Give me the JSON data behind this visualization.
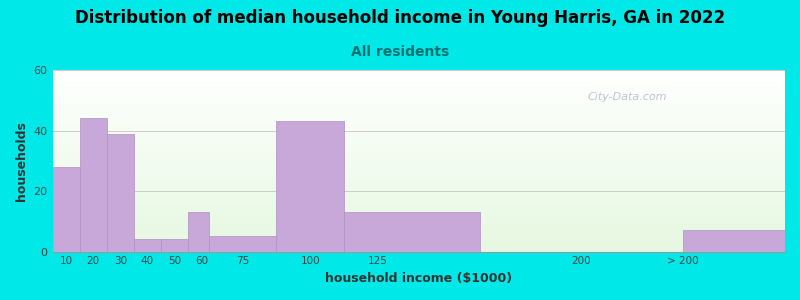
{
  "title": "Distribution of median household income in Young Harris, GA in 2022",
  "subtitle": "All residents",
  "xlabel": "household income ($1000)",
  "ylabel": "households",
  "title_fontsize": 12,
  "subtitle_fontsize": 10,
  "subtitle_color": "#007070",
  "bar_color": "#c8a8d8",
  "bar_edge_color": "#b090c0",
  "background_color": "#00e8e8",
  "plot_bg_top": "#eaf5e8",
  "plot_bg_bottom": "#d4eccc",
  "ylim": [
    0,
    60
  ],
  "yticks": [
    0,
    20,
    40,
    60
  ],
  "watermark": "City-Data.com",
  "bracket_lefts": [
    5,
    15,
    25,
    35,
    45,
    55,
    62.5,
    87.5,
    112.5,
    162.5,
    237.5
  ],
  "bracket_widths": [
    10,
    10,
    10,
    10,
    10,
    7.5,
    25,
    25,
    50,
    75,
    75
  ],
  "values": [
    28,
    44,
    39,
    4,
    4,
    13,
    5,
    43,
    13,
    0,
    7
  ],
  "tick_positions": [
    10,
    20,
    30,
    40,
    50,
    60,
    75,
    100,
    125,
    200,
    237.5
  ],
  "tick_labels": [
    "10",
    "20",
    "30",
    "40",
    "50",
    "60",
    "75",
    "100",
    "125",
    "200",
    "> 200"
  ],
  "xlim": [
    5,
    275
  ]
}
